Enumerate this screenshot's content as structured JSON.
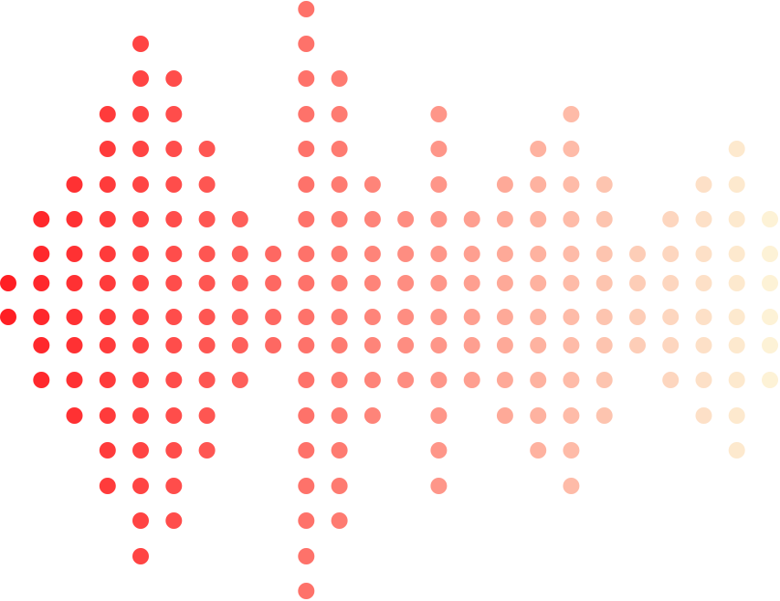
{
  "graphic": {
    "kind": "dot-matrix sound wave",
    "color_start": "#ff1f24",
    "color_end": "#fdf2d6",
    "columns": [
      {
        "first_row": 8,
        "last_row": 9
      },
      {
        "first_row": 6,
        "last_row": 11
      },
      {
        "first_row": 5,
        "last_row": 12
      },
      {
        "first_row": 3,
        "last_row": 14
      },
      {
        "first_row": 1,
        "last_row": 16
      },
      {
        "first_row": 2,
        "last_row": 15
      },
      {
        "first_row": 4,
        "last_row": 13
      },
      {
        "first_row": 6,
        "last_row": 11
      },
      {
        "first_row": 7,
        "last_row": 10
      },
      {
        "first_row": 0,
        "last_row": 17
      },
      {
        "first_row": 2,
        "last_row": 15
      },
      {
        "first_row": 5,
        "last_row": 12
      },
      {
        "first_row": 6,
        "last_row": 11
      },
      {
        "first_row": 3,
        "last_row": 14
      },
      {
        "first_row": 6,
        "last_row": 11
      },
      {
        "first_row": 5,
        "last_row": 12
      },
      {
        "first_row": 4,
        "last_row": 13
      },
      {
        "first_row": 3,
        "last_row": 14
      },
      {
        "first_row": 5,
        "last_row": 12
      },
      {
        "first_row": 7,
        "last_row": 10
      },
      {
        "first_row": 6,
        "last_row": 11
      },
      {
        "first_row": 5,
        "last_row": 12
      },
      {
        "first_row": 4,
        "last_row": 13
      },
      {
        "first_row": 6,
        "last_row": 11
      }
    ]
  }
}
